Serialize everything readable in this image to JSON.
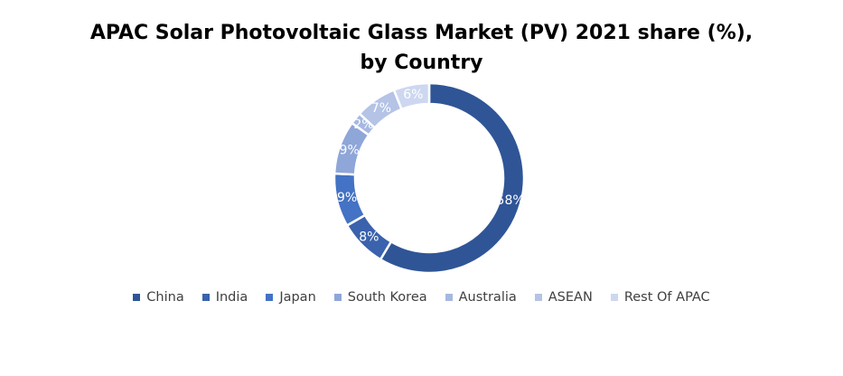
{
  "chart_data": {
    "type": "pie",
    "subtype": "donut",
    "title_line1": "APAC Solar Photovoltaic Glass Market (PV)  2021 share (%),",
    "title_line2": "by Country",
    "categories": [
      "China",
      "India",
      "Japan",
      "South Korea",
      "Australia",
      "ASEAN",
      "Rest Of APAC"
    ],
    "values": [
      58,
      8,
      9,
      9,
      2,
      7,
      6
    ],
    "labels": [
      "58%",
      "8%",
      "9%",
      "9%",
      "2%",
      "7%",
      "6%"
    ],
    "unit": "%",
    "colors": [
      "#2F5597",
      "#3A62AD",
      "#4472C4",
      "#8FA6D9",
      "#A6B8E2",
      "#B4C3E6",
      "#CDD7F0"
    ],
    "legend_position": "bottom",
    "start": "top",
    "direction": "clockwise"
  }
}
